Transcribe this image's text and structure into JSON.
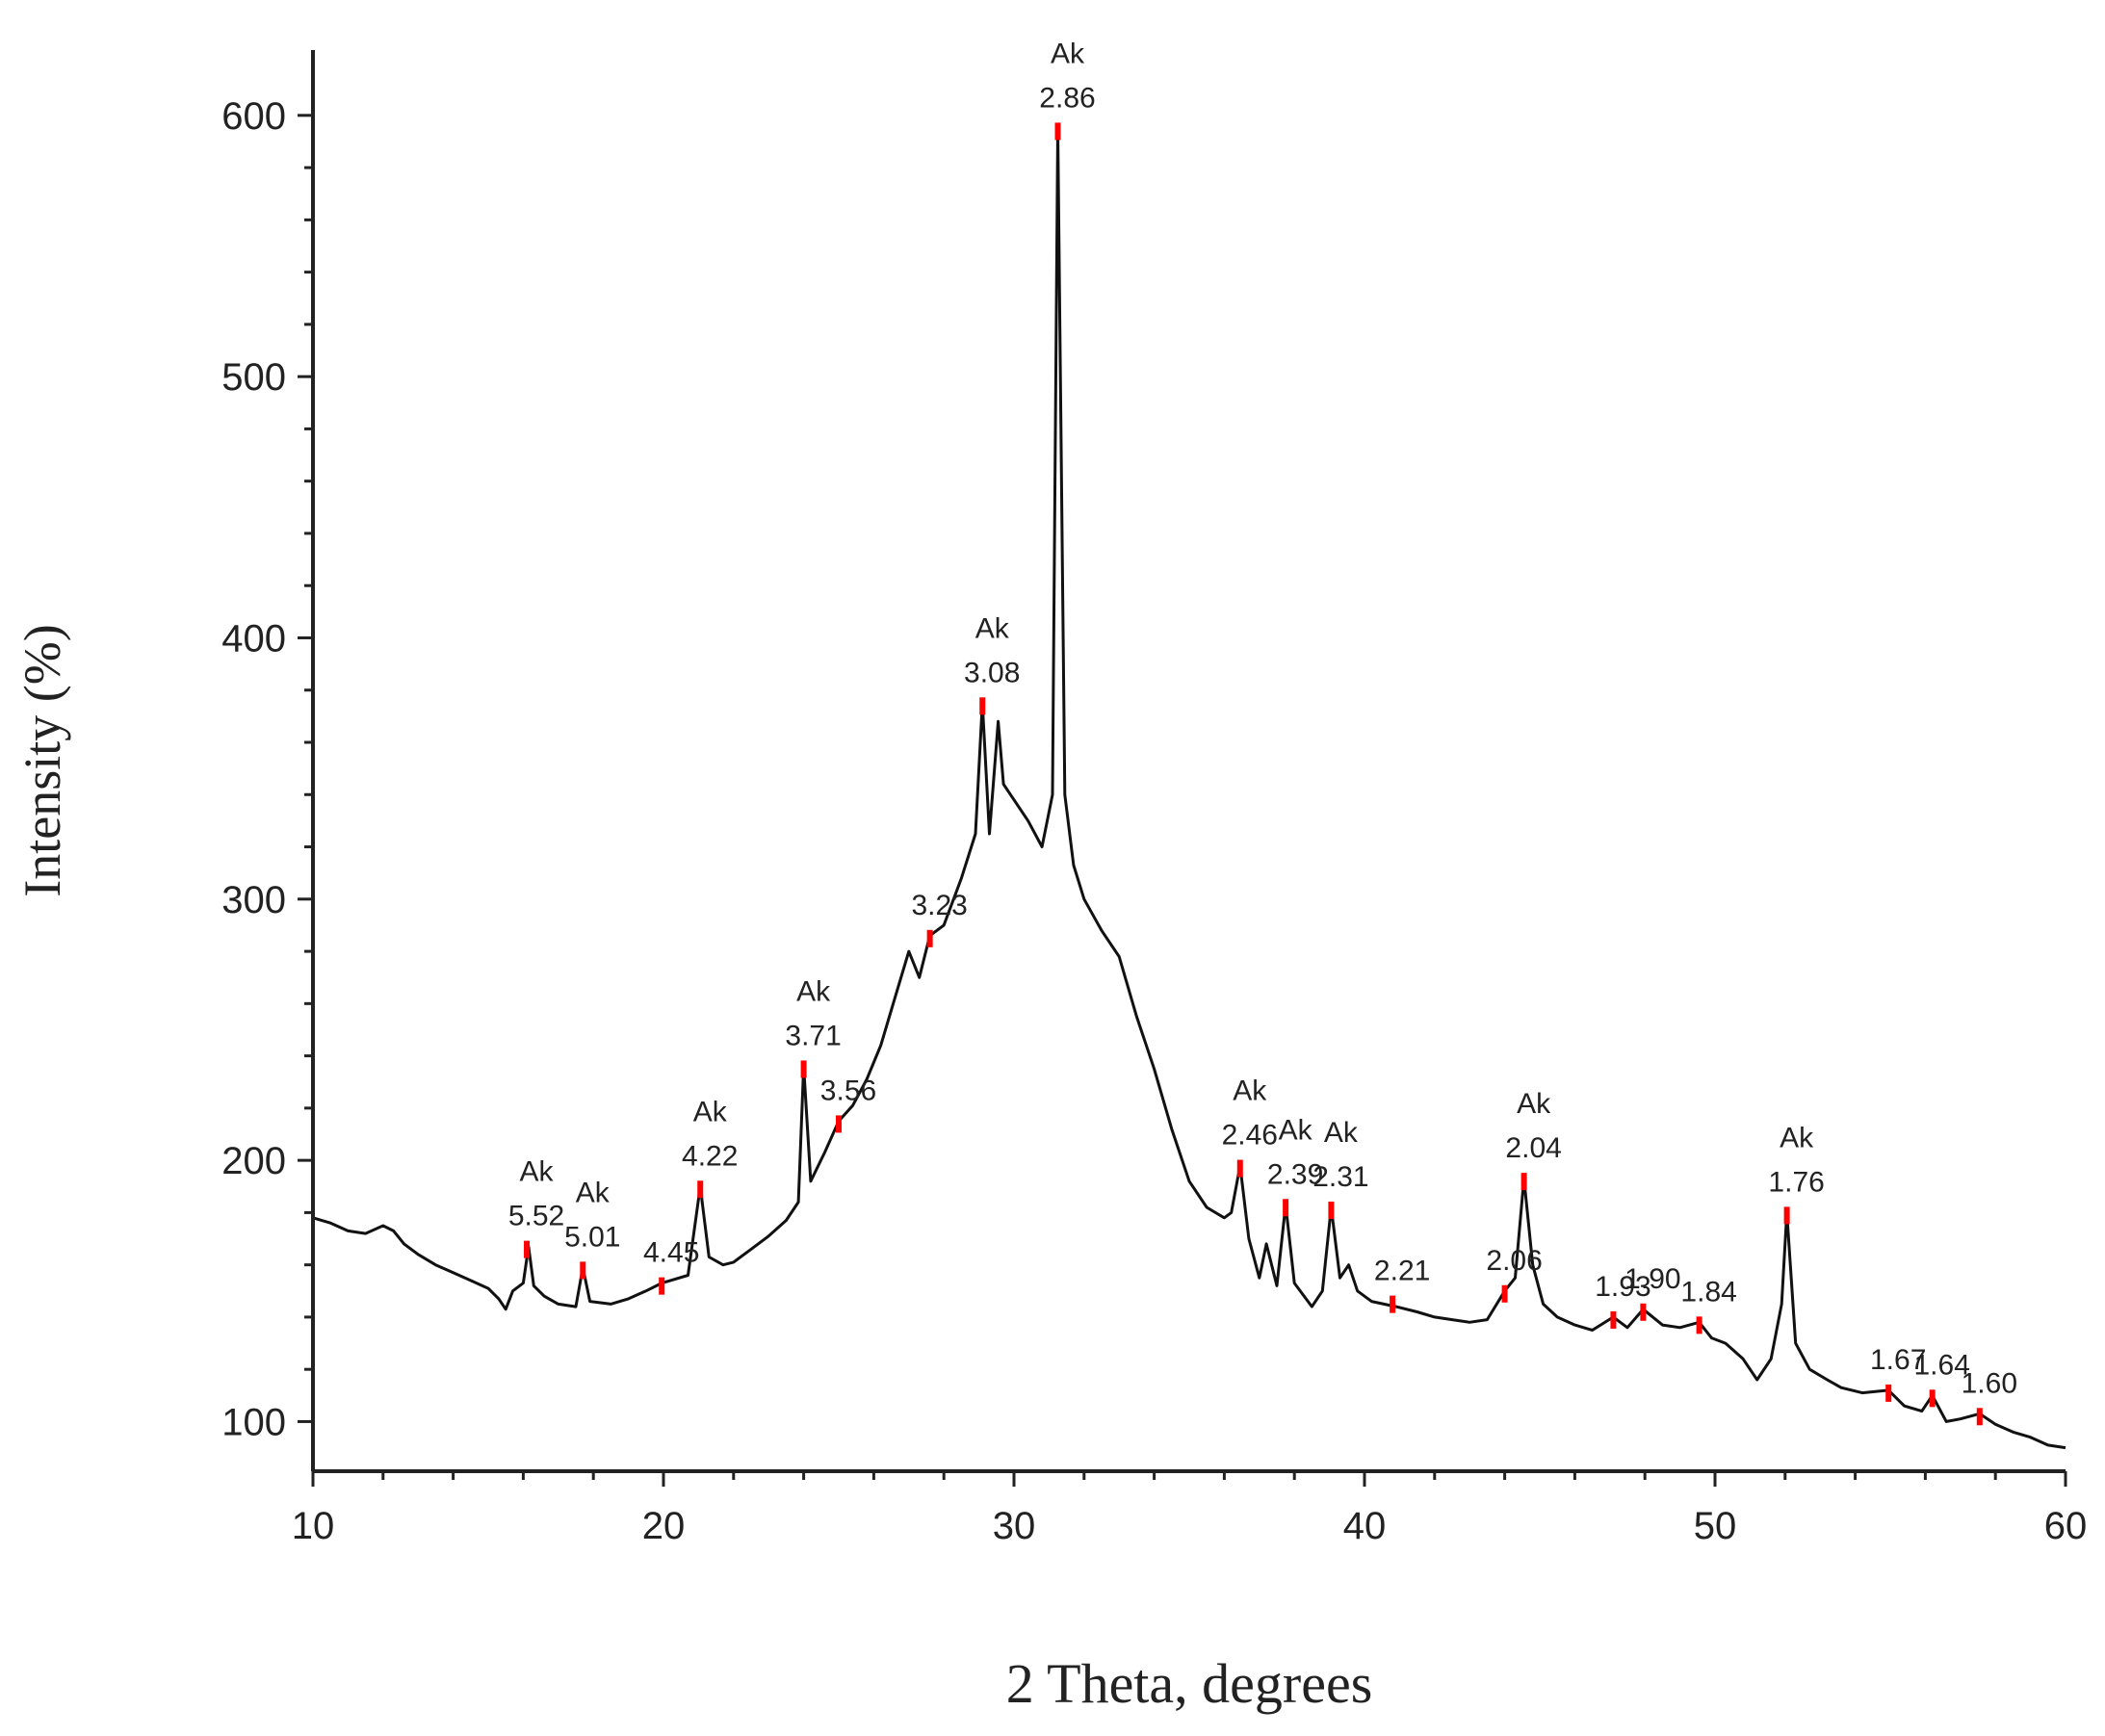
{
  "chart_data": {
    "type": "line",
    "title": "",
    "xlabel": "2 Theta, degrees",
    "ylabel": "Intensity (%)",
    "xlim": [
      10,
      60
    ],
    "ylim": [
      81,
      625
    ],
    "xticks": [
      "10",
      "20",
      "30",
      "40",
      "50",
      "60"
    ],
    "yticks": [
      "100",
      "200",
      "300",
      "400",
      "500",
      "600"
    ],
    "grid": false,
    "line_color": "#111111",
    "marker_color": "#ff0000",
    "series": [
      {
        "values": [
          [
            10,
            178
          ],
          [
            10.5,
            176
          ],
          [
            11,
            173
          ],
          [
            11.5,
            172
          ],
          [
            12,
            175
          ],
          [
            12.3,
            173
          ],
          [
            12.6,
            168
          ],
          [
            13,
            164
          ],
          [
            13.5,
            160
          ],
          [
            14,
            157
          ],
          [
            14.5,
            154
          ],
          [
            15,
            151
          ],
          [
            15.3,
            147
          ],
          [
            15.5,
            143
          ],
          [
            15.7,
            150
          ],
          [
            16,
            153
          ],
          [
            16.15,
            167
          ],
          [
            16.3,
            152
          ],
          [
            16.6,
            148
          ],
          [
            17,
            145
          ],
          [
            17.5,
            144
          ],
          [
            17.7,
            159
          ],
          [
            17.9,
            146
          ],
          [
            18.5,
            145
          ],
          [
            19,
            147
          ],
          [
            19.5,
            150
          ],
          [
            19.95,
            153
          ],
          [
            20.2,
            154
          ],
          [
            20.7,
            156
          ],
          [
            21.05,
            190
          ],
          [
            21.3,
            163
          ],
          [
            21.7,
            160
          ],
          [
            22,
            161
          ],
          [
            22.5,
            166
          ],
          [
            23,
            171
          ],
          [
            23.5,
            177
          ],
          [
            23.85,
            184
          ],
          [
            24,
            236
          ],
          [
            24.2,
            192
          ],
          [
            24.6,
            203
          ],
          [
            25,
            215
          ],
          [
            25.4,
            221
          ],
          [
            25.8,
            231
          ],
          [
            26.2,
            244
          ],
          [
            26.6,
            262
          ],
          [
            27,
            280
          ],
          [
            27.3,
            270
          ],
          [
            27.6,
            286
          ],
          [
            28,
            290
          ],
          [
            28.5,
            308
          ],
          [
            28.9,
            325
          ],
          [
            29.1,
            375
          ],
          [
            29.3,
            325
          ],
          [
            29.55,
            368
          ],
          [
            29.7,
            344
          ],
          [
            30,
            338
          ],
          [
            30.4,
            330
          ],
          [
            30.8,
            320
          ],
          [
            31.1,
            340
          ],
          [
            31.25,
            595
          ],
          [
            31.45,
            340
          ],
          [
            31.7,
            313
          ],
          [
            32,
            300
          ],
          [
            32.5,
            288
          ],
          [
            33,
            278
          ],
          [
            33.5,
            255
          ],
          [
            34,
            235
          ],
          [
            34.5,
            212
          ],
          [
            35,
            192
          ],
          [
            35.5,
            182
          ],
          [
            36,
            178
          ],
          [
            36.2,
            180
          ],
          [
            36.45,
            198
          ],
          [
            36.7,
            170
          ],
          [
            37,
            155
          ],
          [
            37.2,
            168
          ],
          [
            37.5,
            152
          ],
          [
            37.75,
            183
          ],
          [
            38,
            153
          ],
          [
            38.5,
            144
          ],
          [
            38.8,
            150
          ],
          [
            39.05,
            182
          ],
          [
            39.3,
            155
          ],
          [
            39.55,
            160
          ],
          [
            39.8,
            150
          ],
          [
            40.2,
            146
          ],
          [
            40.9,
            144
          ],
          [
            41.5,
            142
          ],
          [
            42,
            140
          ],
          [
            42.5,
            139
          ],
          [
            43,
            138
          ],
          [
            43.5,
            139
          ],
          [
            44,
            150
          ],
          [
            44.3,
            155
          ],
          [
            44.55,
            193
          ],
          [
            44.8,
            160
          ],
          [
            45.1,
            145
          ],
          [
            45.5,
            140
          ],
          [
            46,
            137
          ],
          [
            46.5,
            135
          ],
          [
            47.1,
            140
          ],
          [
            47.5,
            136
          ],
          [
            47.95,
            143
          ],
          [
            48.5,
            137
          ],
          [
            49,
            136
          ],
          [
            49.55,
            138
          ],
          [
            49.9,
            132
          ],
          [
            50.3,
            130
          ],
          [
            50.8,
            124
          ],
          [
            51.2,
            116
          ],
          [
            51.6,
            124
          ],
          [
            51.9,
            145
          ],
          [
            52.05,
            180
          ],
          [
            52.3,
            130
          ],
          [
            52.7,
            120
          ],
          [
            53.2,
            116
          ],
          [
            53.6,
            113
          ],
          [
            54.2,
            111
          ],
          [
            54.95,
            112
          ],
          [
            55.4,
            106
          ],
          [
            55.9,
            104
          ],
          [
            56.2,
            110
          ],
          [
            56.6,
            100
          ],
          [
            57,
            101
          ],
          [
            57.55,
            103
          ],
          [
            58,
            99
          ],
          [
            58.5,
            96
          ],
          [
            59,
            94
          ],
          [
            59.5,
            91
          ],
          [
            60,
            90
          ]
        ]
      }
    ],
    "annotations": [
      {
        "x": 16.1,
        "y": 167,
        "top": "Ak",
        "bottom": "5.52"
      },
      {
        "x": 17.7,
        "y": 159,
        "top": "Ak",
        "bottom": "5.01"
      },
      {
        "x": 19.95,
        "y": 153,
        "top": "",
        "bottom": "4.45"
      },
      {
        "x": 21.05,
        "y": 190,
        "top": "Ak",
        "bottom": "4.22"
      },
      {
        "x": 24.0,
        "y": 236,
        "top": "Ak",
        "bottom": "3.71"
      },
      {
        "x": 25.0,
        "y": 215,
        "top": "",
        "bottom": "3.56"
      },
      {
        "x": 27.6,
        "y": 286,
        "top": "",
        "bottom": "3.23"
      },
      {
        "x": 29.1,
        "y": 375,
        "top": "Ak",
        "bottom": "3.08"
      },
      {
        "x": 31.25,
        "y": 595,
        "top": "Ak",
        "bottom": "2.86"
      },
      {
        "x": 36.45,
        "y": 198,
        "top": "Ak",
        "bottom": "2.46"
      },
      {
        "x": 37.75,
        "y": 183,
        "top": "Ak",
        "bottom": "2.39"
      },
      {
        "x": 39.05,
        "y": 182,
        "top": "Ak",
        "bottom": "2.31"
      },
      {
        "x": 40.8,
        "y": 146,
        "top": "",
        "bottom": "2.21"
      },
      {
        "x": 44.0,
        "y": 150,
        "top": "",
        "bottom": "2.06"
      },
      {
        "x": 44.55,
        "y": 193,
        "top": "Ak",
        "bottom": "2.04"
      },
      {
        "x": 47.1,
        "y": 140,
        "top": "",
        "bottom": "1.93"
      },
      {
        "x": 47.95,
        "y": 143,
        "top": "",
        "bottom": "1.90"
      },
      {
        "x": 49.55,
        "y": 138,
        "top": "",
        "bottom": "1.84"
      },
      {
        "x": 52.05,
        "y": 180,
        "top": "Ak",
        "bottom": "1.76"
      },
      {
        "x": 54.95,
        "y": 112,
        "top": "",
        "bottom": "1.67"
      },
      {
        "x": 56.2,
        "y": 110,
        "top": "",
        "bottom": "1.64"
      },
      {
        "x": 57.55,
        "y": 103,
        "top": "",
        "bottom": "1.60"
      }
    ]
  }
}
